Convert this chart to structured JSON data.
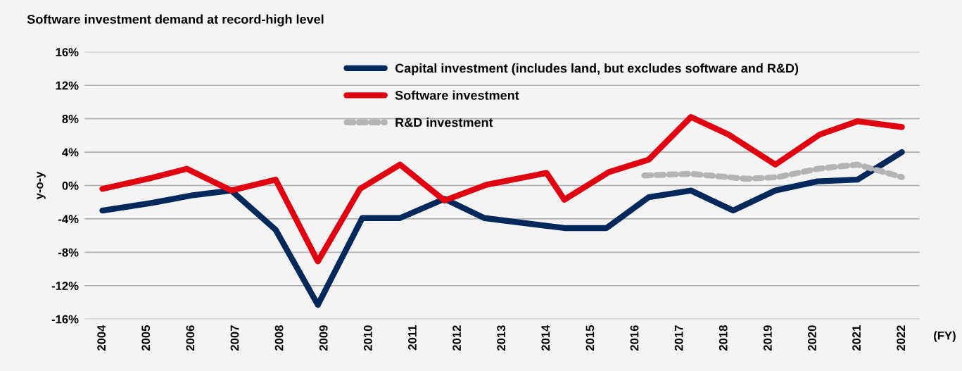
{
  "chart_data": {
    "type": "line",
    "title": "Software investment demand at record-high level",
    "ylabel": "y-o-y",
    "xlabel": "(FY)",
    "xlim": [
      2003.6,
      2022.4
    ],
    "xticks": [
      2004,
      2005,
      2006,
      2007,
      2008,
      2009,
      2010,
      2011,
      2012,
      2013,
      2014,
      2015,
      2016,
      2017,
      2018,
      2019,
      2020,
      2021,
      2022
    ],
    "ylim": [
      -16,
      16
    ],
    "yticks": [
      {
        "value": -16,
        "label": "-16%"
      },
      {
        "value": -12,
        "label": "-12%"
      },
      {
        "value": -8,
        "label": "-8%"
      },
      {
        "value": -4,
        "label": "-4%"
      },
      {
        "value": 0,
        "label": "0%"
      },
      {
        "value": 4,
        "label": "4%"
      },
      {
        "value": 8,
        "label": "8%"
      },
      {
        "value": 12,
        "label": "12%"
      },
      {
        "value": 16,
        "label": "16%"
      }
    ],
    "grid": "y",
    "legend": "top",
    "marker": "none",
    "series": [
      {
        "name": "Capital investment (includes land, but excludes software and R&D)",
        "color": "#00285a",
        "line_style": "solid",
        "x": [
          2004,
          2005.1,
          2006,
          2006.9,
          2007.9,
          2008.85,
          2009.85,
          2010.7,
          2011.7,
          2012.6,
          2014.4,
          2015.35,
          2016.3,
          2017.25,
          2018.2,
          2019.15,
          2020.1,
          2021,
          2022
        ],
        "values": [
          -3.0,
          -2.1,
          -1.2,
          -0.6,
          -5.3,
          -14.3,
          -3.9,
          -3.9,
          -1.6,
          -3.9,
          -5.1,
          -5.1,
          -1.4,
          -0.6,
          -3.0,
          -0.6,
          0.5,
          0.7,
          4.0
        ]
      },
      {
        "name": "Software investment",
        "color": "#e0000f",
        "line_style": "solid",
        "x": [
          2004,
          2005.1,
          2005.9,
          2006.9,
          2007.9,
          2008.85,
          2009.8,
          2010.7,
          2011.7,
          2012.65,
          2014,
          2014.4,
          2015.4,
          2016.3,
          2017.25,
          2018.1,
          2019.15,
          2020.15,
          2021,
          2022
        ],
        "values": [
          -0.4,
          0.9,
          2.0,
          -0.6,
          0.7,
          -9.1,
          -0.4,
          2.5,
          -1.8,
          0.1,
          1.5,
          -1.7,
          1.6,
          3.1,
          8.2,
          6.1,
          2.5,
          6.1,
          7.7,
          7.0
        ]
      },
      {
        "name": "R&D investment",
        "color": "#b4b4b4",
        "line_style": "dashed",
        "x": [
          2016.2,
          2017.25,
          2018.5,
          2019.2,
          2020.1,
          2021,
          2022
        ],
        "values": [
          1.2,
          1.4,
          0.8,
          1.0,
          2.0,
          2.5,
          1.0
        ]
      }
    ]
  }
}
